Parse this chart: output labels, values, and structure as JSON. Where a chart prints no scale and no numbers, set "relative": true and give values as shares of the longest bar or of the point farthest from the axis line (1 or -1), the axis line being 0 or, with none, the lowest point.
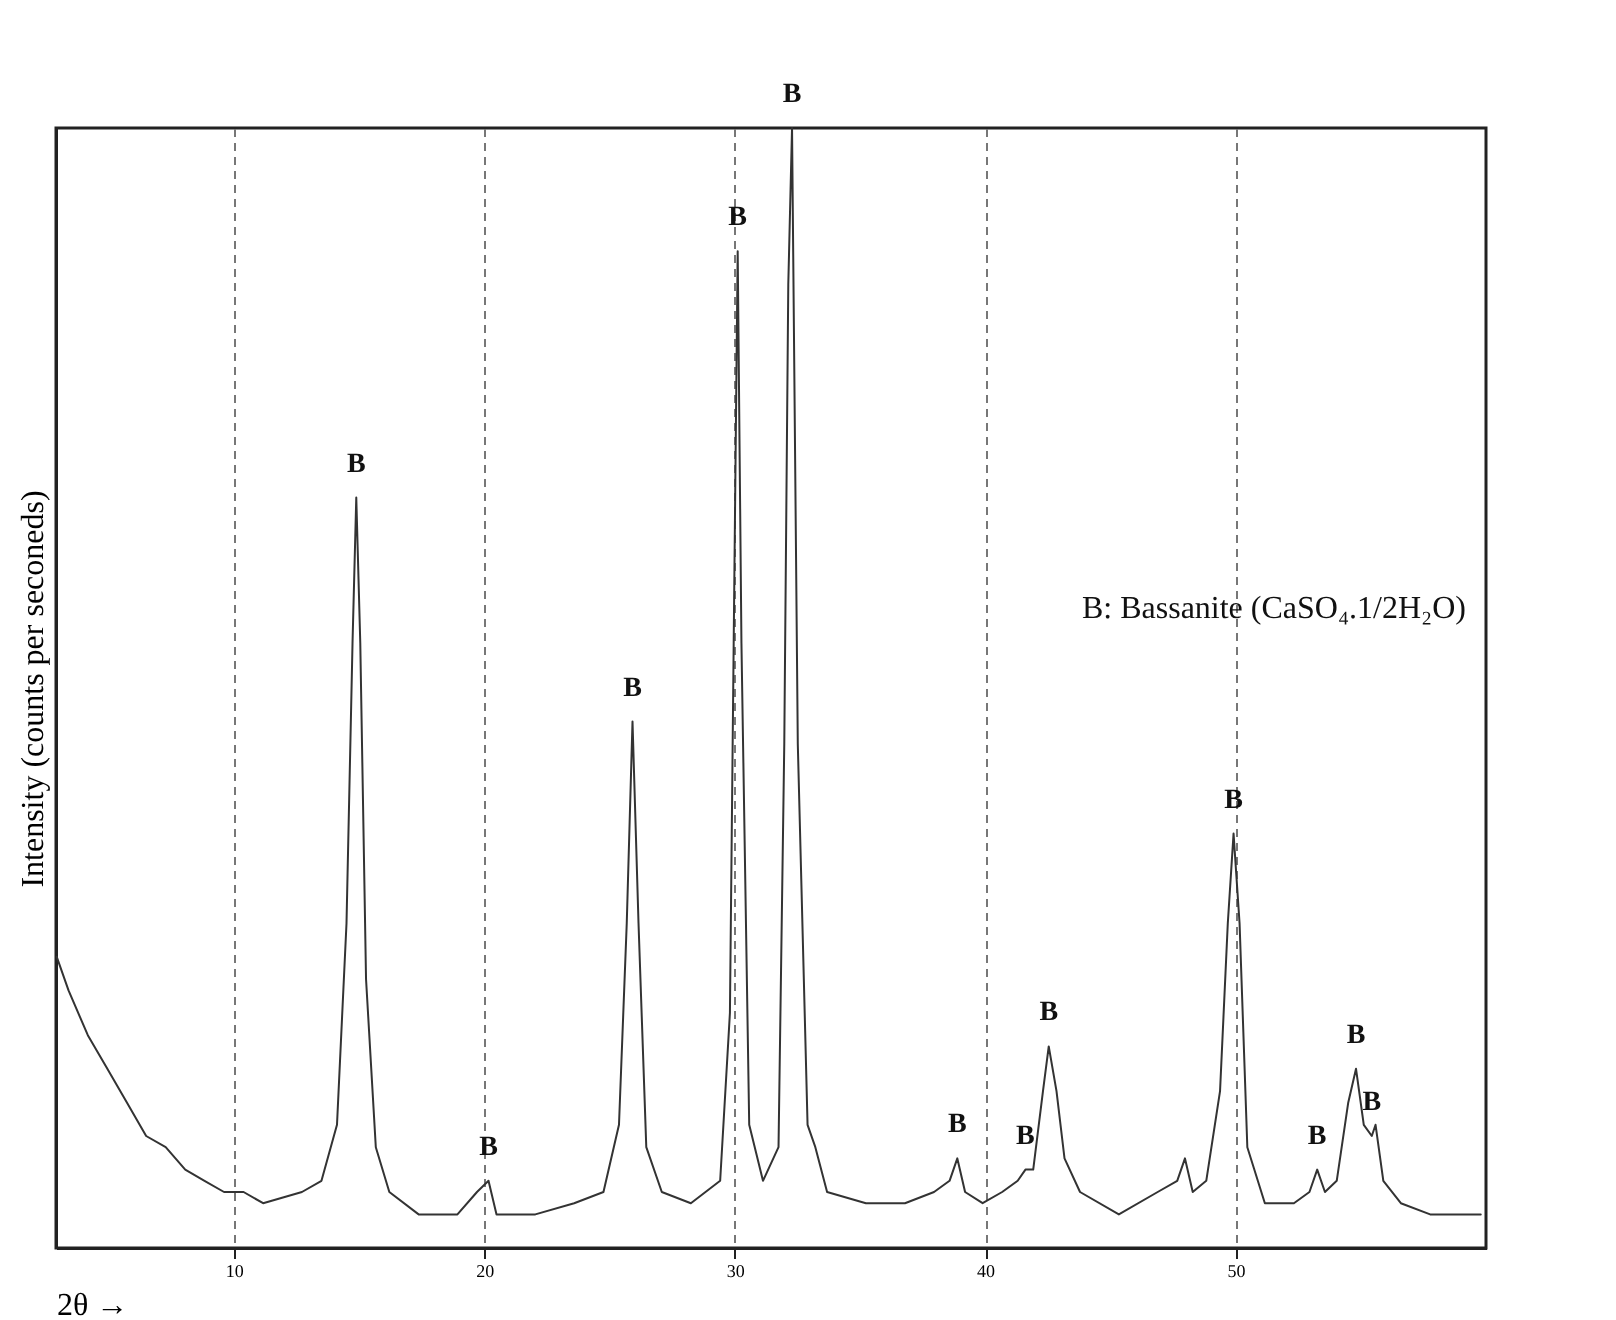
{
  "chart_data": {
    "type": "line",
    "relative": true,
    "xlabel": "2θ →",
    "ylabel": "Intensity (counts per seconeds)",
    "xlim": [
      2.9,
      60
    ],
    "xticks": [
      10,
      20,
      30,
      40,
      50
    ],
    "grid": "x",
    "color": "#333333",
    "x": [
      2.93,
      3.4,
      4.17,
      4.95,
      5.73,
      6.5,
      7.28,
      8.06,
      8.83,
      9.61,
      10.39,
      11.17,
      12.72,
      13.5,
      14.12,
      14.5,
      14.74,
      14.89,
      15.05,
      15.28,
      15.67,
      16.21,
      17.38,
      18.93,
      19.71,
      20.17,
      20.49,
      22.04,
      23.59,
      24.76,
      25.38,
      25.69,
      25.92,
      26.16,
      26.47,
      27.09,
      28.25,
      29.42,
      29.81,
      29.96,
      30.12,
      30.27,
      30.58,
      31.13,
      31.75,
      31.98,
      32.14,
      32.29,
      32.52,
      32.91,
      33.22,
      33.69,
      35.24,
      36.8,
      37.96,
      38.58,
      38.89,
      39.2,
      39.9,
      40.68,
      41.3,
      41.61,
      41.92,
      42.31,
      42.54,
      42.85,
      43.17,
      43.79,
      45.34,
      46.89,
      47.67,
      47.98,
      48.29,
      48.83,
      49.38,
      49.69,
      49.92,
      50.16,
      50.47,
      51.17,
      52.33,
      52.95,
      53.26,
      53.57,
      54.04,
      54.5,
      54.81,
      55.12,
      55.44,
      55.59,
      55.9,
      56.6,
      57.77,
      59.32,
      59.79
    ],
    "values": [
      0.26,
      0.23,
      0.19,
      0.16,
      0.13,
      0.1,
      0.09,
      0.07,
      0.06,
      0.05,
      0.05,
      0.04,
      0.05,
      0.06,
      0.11,
      0.29,
      0.54,
      0.67,
      0.54,
      0.24,
      0.09,
      0.05,
      0.03,
      0.03,
      0.05,
      0.06,
      0.03,
      0.03,
      0.04,
      0.05,
      0.11,
      0.29,
      0.47,
      0.29,
      0.09,
      0.05,
      0.04,
      0.06,
      0.21,
      0.54,
      0.89,
      0.54,
      0.11,
      0.06,
      0.09,
      0.45,
      0.86,
      1,
      0.45,
      0.11,
      0.09,
      0.05,
      0.04,
      0.04,
      0.05,
      0.06,
      0.08,
      0.05,
      0.04,
      0.05,
      0.06,
      0.07,
      0.07,
      0.14,
      0.18,
      0.14,
      0.08,
      0.05,
      0.03,
      0.05,
      0.06,
      0.08,
      0.05,
      0.06,
      0.14,
      0.29,
      0.37,
      0.29,
      0.09,
      0.04,
      0.04,
      0.05,
      0.07,
      0.05,
      0.06,
      0.13,
      0.16,
      0.11,
      0.1,
      0.11,
      0.06,
      0.04,
      0.03,
      0.03,
      0.03
    ],
    "annotations": [
      {
        "text": "B",
        "x": 14.89,
        "y": 0.67
      },
      {
        "text": "B",
        "x": 20.17,
        "y": 0.06
      },
      {
        "text": "B",
        "x": 25.92,
        "y": 0.47
      },
      {
        "text": "B",
        "x": 30.12,
        "y": 0.89
      },
      {
        "text": "B",
        "x": 32.29,
        "y": 1
      },
      {
        "text": "B",
        "x": 38.89,
        "y": 0.08
      },
      {
        "text": "B",
        "x": 41.61,
        "y": 0.07
      },
      {
        "text": "B",
        "x": 42.54,
        "y": 0.18
      },
      {
        "text": "B",
        "x": 49.92,
        "y": 0.37
      },
      {
        "text": "B",
        "x": 53.26,
        "y": 0.07
      },
      {
        "text": "B",
        "x": 54.81,
        "y": 0.16
      },
      {
        "text": "B",
        "x": 55.44,
        "y": 0.1
      },
      "B: Bassanite (CaSO₄.1/2H₂O)"
    ]
  }
}
